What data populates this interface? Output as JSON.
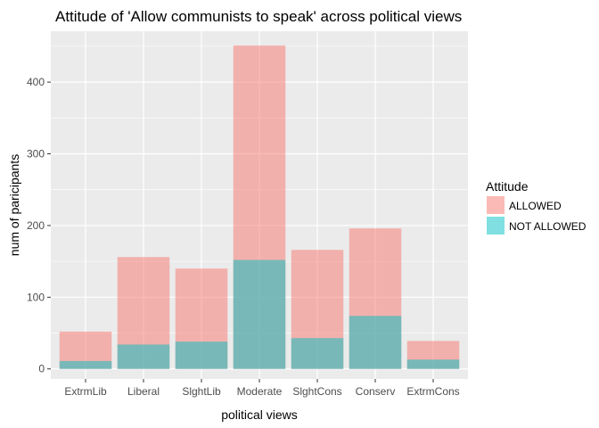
{
  "chart_data": {
    "type": "bar",
    "stacked": false,
    "overlapping_bars": true,
    "title": "Attitude of 'Allow communists to speak' across political views",
    "xlabel": "political views",
    "ylabel": "num of paricipants",
    "categories": [
      "ExtrmLib",
      "Liberal",
      "SlghtLib",
      "Moderate",
      "SlghtCons",
      "Conserv",
      "ExtrmCons"
    ],
    "series": [
      {
        "name": "ALLOWED",
        "color": "#F8766D",
        "opacity": 0.5,
        "values": [
          52,
          156,
          140,
          451,
          166,
          196,
          39
        ]
      },
      {
        "name": "NOT ALLOWED",
        "color": "#00BFC4",
        "opacity": 0.5,
        "values": [
          11,
          34,
          38,
          152,
          43,
          74,
          13
        ]
      }
    ],
    "ylim": [
      -14,
      471
    ],
    "yticks": [
      0,
      100,
      200,
      300,
      400
    ],
    "grid": true,
    "background": "#EBEBEB",
    "legend": {
      "title": "Attitude",
      "position": "right"
    }
  }
}
